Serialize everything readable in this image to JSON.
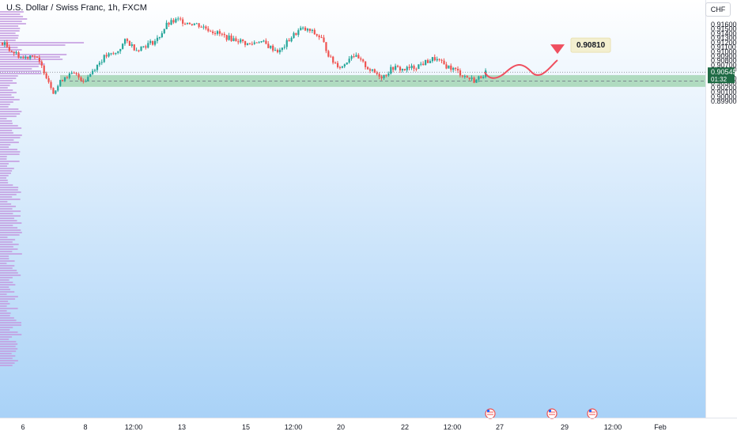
{
  "header": {
    "title": "U.S. Dollar / Swiss Franc, 1h, FXCM",
    "currency": "CHF"
  },
  "price_tags": {
    "current_price": "0.90545",
    "countdown": "01:32",
    "target_price": "0.90810"
  },
  "colors": {
    "up_candle": "#26a69a",
    "down_candle": "#ef5350",
    "forecast_path": "#ef4f5f",
    "target_marker": "#ef4f5f",
    "zone_fill": "#a5d6b5",
    "volume_profile": "#c49be0",
    "background_top": "#ffffff",
    "background_bottom": "#a9d2f7",
    "current_price_tag": "#1f6b45"
  },
  "chart_data": {
    "type": "candlestick",
    "title": "U.S. Dollar / Swiss Franc, 1h, FXCM",
    "ylim": [
      0.8985,
      0.918
    ],
    "y_ticks": [
      "0.91600",
      "0.91500",
      "0.91400",
      "0.91300",
      "0.91200",
      "0.91100",
      "0.91000",
      "0.90900",
      "0.90800",
      "0.90700",
      "0.90600",
      "0.90400",
      "0.90300",
      "0.90200",
      "0.90100",
      "0.90000",
      "0.89900"
    ],
    "x_ticks": [
      "6",
      "8",
      "12:00",
      "13",
      "15",
      "12:00",
      "20",
      "22",
      "12:00",
      "27",
      "29",
      "12:00",
      "Feb"
    ],
    "series": [
      {
        "type": "candlestick",
        "key_points": [
          [
            "6",
            0.912
          ],
          [
            "6",
            0.91
          ],
          [
            "6",
            0.9085
          ],
          [
            "6",
            0.9095
          ],
          [
            "7",
            0.906
          ],
          [
            "7",
            0.901
          ],
          [
            "7",
            0.9045
          ],
          [
            "7",
            0.905
          ],
          [
            "7",
            0.9035
          ],
          [
            "8",
            0.9065
          ],
          [
            "8",
            0.909
          ],
          [
            "8",
            0.9095
          ],
          [
            "12:00",
            0.9125
          ],
          [
            "12:00",
            0.9105
          ],
          [
            "12:00",
            0.9115
          ],
          [
            "12:00",
            0.9125
          ],
          [
            "13",
            0.916
          ],
          [
            "13",
            0.917
          ],
          [
            "13",
            0.9165
          ],
          [
            "14",
            0.916
          ],
          [
            "14",
            0.915
          ],
          [
            "15",
            0.914
          ],
          [
            "15",
            0.913
          ],
          [
            "15",
            0.9125
          ],
          [
            "12:00",
            0.9115
          ],
          [
            "12:00",
            0.9125
          ],
          [
            "12:00",
            0.911
          ],
          [
            "12:00",
            0.91
          ],
          [
            "20",
            0.913
          ],
          [
            "20",
            0.915
          ],
          [
            "20",
            0.9145
          ],
          [
            "20",
            0.913
          ],
          [
            "21",
            0.908
          ],
          [
            "21",
            0.9065
          ],
          [
            "21",
            0.9095
          ],
          [
            "21",
            0.9075
          ],
          [
            "22",
            0.9055
          ],
          [
            "22",
            0.9045
          ],
          [
            "22",
            0.9065
          ],
          [
            "22",
            0.906
          ],
          [
            "12:00",
            0.9065
          ],
          [
            "12:00",
            0.9075
          ],
          [
            "12:00",
            0.9085
          ],
          [
            "12:00",
            0.907
          ],
          [
            "26",
            0.906
          ],
          [
            "26",
            0.9045
          ],
          [
            "26",
            0.9035
          ],
          [
            "26",
            0.90545
          ]
        ]
      }
    ],
    "current_price": 0.90545,
    "current_price_label": "0.90545",
    "countdown": "01:32",
    "demand_zone": {
      "low": 0.9022,
      "high": 0.9048,
      "midline": 0.9035
    },
    "forecast_target": 0.9081,
    "forecast_target_label": "0.90810",
    "event_markers": [
      "US",
      "US",
      "US"
    ]
  }
}
